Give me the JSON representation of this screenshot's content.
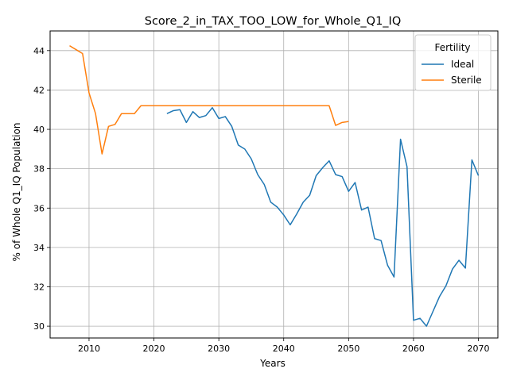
{
  "chart_data": {
    "type": "line",
    "title": "Score_2_in_TAX_TOO_LOW_for_Whole_Q1_IQ",
    "xlabel": "Years",
    "ylabel": "% of Whole Q1_IQ Population",
    "xlim": [
      2004,
      2073
    ],
    "ylim": [
      29.4,
      45.0
    ],
    "xticks": [
      2010,
      2020,
      2030,
      2040,
      2050,
      2060,
      2070
    ],
    "yticks": [
      30,
      32,
      34,
      36,
      38,
      40,
      42,
      44
    ],
    "grid": true,
    "legend": {
      "title": "Fertility",
      "placement": "top-right"
    },
    "series": [
      {
        "name": "Ideal",
        "color": "#1f77b4",
        "x": [
          2022,
          2023,
          2024,
          2025,
          2026,
          2027,
          2028,
          2029,
          2030,
          2031,
          2032,
          2033,
          2034,
          2035,
          2036,
          2037,
          2038,
          2039,
          2040,
          2041,
          2042,
          2043,
          2044,
          2045,
          2046,
          2047,
          2048,
          2049,
          2050,
          2051,
          2052,
          2053,
          2054,
          2055,
          2056,
          2057,
          2058,
          2059,
          2060,
          2061,
          2062,
          2063,
          2064,
          2065,
          2066,
          2067,
          2068,
          2069,
          2070
        ],
        "y": [
          40.8,
          40.95,
          41.0,
          40.35,
          40.9,
          40.6,
          40.7,
          41.1,
          40.55,
          40.65,
          40.15,
          39.2,
          39.0,
          38.5,
          37.7,
          37.2,
          36.3,
          36.05,
          35.65,
          35.15,
          35.7,
          36.3,
          36.65,
          37.65,
          38.05,
          38.4,
          37.7,
          37.6,
          36.85,
          37.3,
          35.9,
          36.05,
          34.45,
          34.35,
          33.1,
          32.5,
          39.5,
          38.1,
          30.3,
          30.4,
          30.0,
          30.75,
          31.5,
          32.05,
          32.9,
          33.35,
          32.95,
          38.45,
          37.65
        ]
      },
      {
        "name": "Sterile",
        "color": "#ff7f0e",
        "x": [
          2007,
          2008,
          2009,
          2010,
          2011,
          2012,
          2013,
          2014,
          2015,
          2016,
          2017,
          2018,
          2019,
          2020,
          2021,
          2022,
          2023,
          2024,
          2025,
          2026,
          2027,
          2028,
          2029,
          2030,
          2031,
          2032,
          2033,
          2034,
          2035,
          2036,
          2037,
          2038,
          2039,
          2040,
          2041,
          2042,
          2043,
          2044,
          2045,
          2046,
          2047,
          2048,
          2049,
          2050
        ],
        "y": [
          44.25,
          44.05,
          43.85,
          41.85,
          40.8,
          38.75,
          40.15,
          40.25,
          40.8,
          40.8,
          40.8,
          41.2,
          41.2,
          41.2,
          41.2,
          41.2,
          41.2,
          41.2,
          41.2,
          41.2,
          41.2,
          41.2,
          41.2,
          41.2,
          41.2,
          41.2,
          41.2,
          41.2,
          41.2,
          41.2,
          41.2,
          41.2,
          41.2,
          41.2,
          41.2,
          41.2,
          41.2,
          41.2,
          41.2,
          41.2,
          41.2,
          40.2,
          40.35,
          40.4
        ]
      }
    ]
  }
}
